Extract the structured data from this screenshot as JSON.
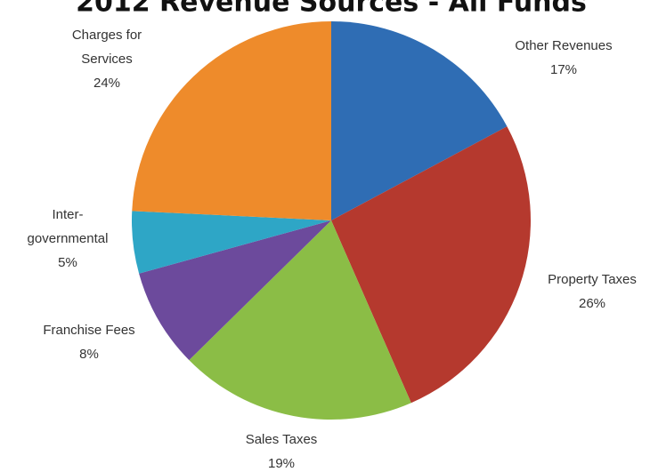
{
  "chart_data": {
    "type": "pie",
    "title": "2012 Revenue Sources - All Funds",
    "categories": [
      "Other Revenues",
      "Property Taxes",
      "Sales Taxes",
      "Franchise Fees",
      "Inter-\ngovernmental",
      "Charges for\nServices"
    ],
    "values": [
      17,
      26,
      19,
      8,
      5,
      24
    ],
    "value_labels": [
      "17%",
      "26%",
      "19%",
      "8%",
      "5%",
      "24%"
    ],
    "colors": [
      "#2f6db4",
      "#b5392e",
      "#8bbd46",
      "#6c4a9c",
      "#2ea6c6",
      "#ee8b2b"
    ]
  }
}
